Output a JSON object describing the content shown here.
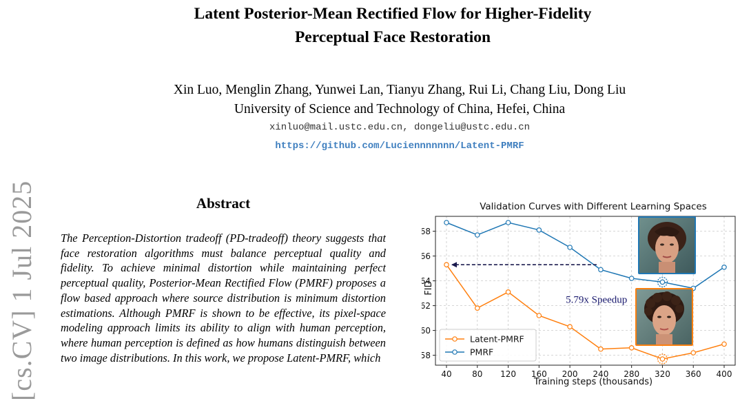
{
  "paper": {
    "title_line1": "Latent Posterior-Mean Rectified Flow for Higher-Fidelity",
    "title_line2": "Perceptual Face Restoration",
    "authors": "Xin Luo, Menglin Zhang, Yunwei Lan, Tianyu Zhang, Rui Li, Chang Liu, Dong Liu",
    "affiliation": "University of Science and Technology of China, Hefei, China",
    "emails": "xinluo@mail.ustc.edu.cn, dongeliu@ustc.edu.cn",
    "repo_url": "https://github.com/Luciennnnnnn/Latent-PMRF",
    "arxiv_stamp": "[cs.CV]  1 Jul 2025",
    "abstract_heading": "Abstract",
    "abstract_text": "The Perception-Distortion tradeoff (PD-tradeoff) theory suggests that face restoration algorithms must balance perceptual quality and fidelity. To achieve minimal distortion while maintaining perfect perceptual quality, Posterior-Mean Rectified Flow (PMRF) proposes a flow based approach where source distribution is minimum distortion estimations. Although PMRF is shown to be effective, its pixel-space modeling approach limits its ability to align with human perception, where human perception is defined as how humans distinguish between two image distributions. In this work, we propose Latent-PMRF, which"
  },
  "colors": {
    "latent_pmrf": "#ff7f0e",
    "pmrf": "#1f77b4",
    "arrow": "#1a1a4e",
    "annotation": "#1a1a6e",
    "repo_link": "#3f7fbf",
    "arxiv_stamp": "#9a9a9a"
  },
  "chart_data": {
    "type": "line",
    "title": "Validation Curves with Different Learning Spaces",
    "xlabel": "Training steps (thousands)",
    "ylabel": "FID",
    "x": [
      40,
      80,
      120,
      160,
      200,
      240,
      280,
      320,
      360,
      400
    ],
    "xlim": [
      40,
      400
    ],
    "ylim": [
      57.2,
      69.2
    ],
    "yticks": [
      58,
      60,
      62,
      64,
      66,
      68
    ],
    "grid": true,
    "legend_position": "lower-left",
    "series": [
      {
        "name": "Latent-PMRF",
        "values": [
          65.3,
          61.8,
          63.1,
          61.2,
          60.3,
          58.5,
          58.6,
          57.7,
          58.2,
          58.9
        ]
      },
      {
        "name": "PMRF",
        "values": [
          68.7,
          67.7,
          68.7,
          68.1,
          66.7,
          64.9,
          64.2,
          63.9,
          63.4,
          65.1
        ]
      }
    ],
    "highlights": [
      {
        "series": "PMRF",
        "x": 320,
        "y": 63.9
      },
      {
        "series": "Latent-PMRF",
        "x": 320,
        "y": 57.7
      }
    ],
    "annotation": {
      "text": "5.79x Speedup",
      "arrow_from": [
        240,
        65.3
      ],
      "arrow_to": [
        40,
        65.3
      ]
    },
    "inset_images": [
      {
        "series": "PMRF",
        "icon": "face-photo-icon"
      },
      {
        "series": "Latent-PMRF",
        "icon": "face-photo-icon"
      }
    ]
  }
}
